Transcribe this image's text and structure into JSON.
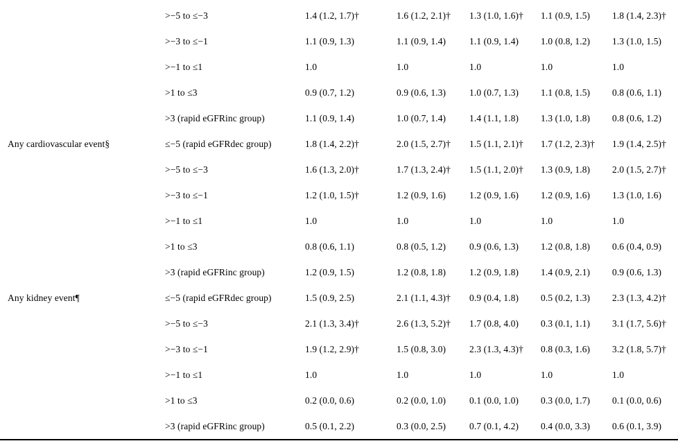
{
  "table": {
    "description": "Hazard ratio (95% CI) table by annual eGFR change category",
    "rows": [
      {
        "event": "",
        "category": ">−5 to ≤−3",
        "values": [
          "1.4 (1.2, 1.7)†",
          "1.6 (1.2, 2.1)†",
          "1.3 (1.0, 1.6)†",
          "1.1 (0.9, 1.5)",
          "1.8 (1.4, 2.3)†"
        ]
      },
      {
        "event": "",
        "category": ">−3 to ≤−1",
        "values": [
          "1.1 (0.9, 1.3)",
          "1.1 (0.9, 1.4)",
          "1.1 (0.9, 1.4)",
          "1.0 (0.8, 1.2)",
          "1.3 (1.0, 1.5)"
        ]
      },
      {
        "event": "",
        "category": ">−1 to ≤1",
        "values": [
          "1.0",
          "1.0",
          "1.0",
          "1.0",
          "1.0"
        ]
      },
      {
        "event": "",
        "category": ">1 to ≤3",
        "values": [
          "0.9 (0.7, 1.2)",
          "0.9 (0.6, 1.3)",
          "1.0 (0.7, 1.3)",
          "1.1 (0.8, 1.5)",
          "0.8 (0.6, 1.1)"
        ]
      },
      {
        "event": "",
        "category": ">3 (rapid eGFRinc group)",
        "values": [
          "1.1 (0.9, 1.4)",
          "1.0 (0.7, 1.4)",
          "1.4 (1.1, 1.8)",
          "1.3 (1.0, 1.8)",
          "0.8 (0.6, 1.2)"
        ]
      },
      {
        "event": "Any cardiovascular event§",
        "category": "≤−5 (rapid eGFRdec group)",
        "values": [
          "1.8 (1.4, 2.2)†",
          "2.0 (1.5, 2.7)†",
          "1.5 (1.1, 2.1)†",
          "1.7 (1.2, 2.3)†",
          "1.9 (1.4, 2.5)†"
        ]
      },
      {
        "event": "",
        "category": ">−5 to ≤−3",
        "values": [
          "1.6 (1.3, 2.0)†",
          "1.7 (1.3, 2.4)†",
          "1.5 (1.1, 2.0)†",
          "1.3 (0.9, 1.8)",
          "2.0 (1.5, 2.7)†"
        ]
      },
      {
        "event": "",
        "category": ">−3 to ≤−1",
        "values": [
          "1.2 (1.0, 1.5)†",
          "1.2 (0.9, 1.6)",
          "1.2 (0.9, 1.6)",
          "1.2 (0.9, 1.6)",
          "1.3 (1.0, 1.6)"
        ]
      },
      {
        "event": "",
        "category": ">−1 to ≤1",
        "values": [
          "1.0",
          "1.0",
          "1.0",
          "1.0",
          "1.0"
        ]
      },
      {
        "event": "",
        "category": ">1 to ≤3",
        "values": [
          "0.8 (0.6, 1.1)",
          "0.8 (0.5, 1.2)",
          "0.9 (0.6, 1.3)",
          "1.2 (0.8, 1.8)",
          "0.6 (0.4, 0.9)"
        ]
      },
      {
        "event": "",
        "category": ">3 (rapid eGFRinc group)",
        "values": [
          "1.2 (0.9, 1.5)",
          "1.2 (0.8, 1.8)",
          "1.2 (0.9, 1.8)",
          "1.4 (0.9, 2.1)",
          "0.9 (0.6, 1.3)"
        ]
      },
      {
        "event": "Any kidney event¶",
        "category": "≤−5 (rapid eGFRdec group)",
        "values": [
          "1.5 (0.9, 2.5)",
          "2.1 (1.1, 4.3)†",
          "0.9 (0.4, 1.8)",
          "0.5 (0.2, 1.3)",
          "2.3 (1.3, 4.2)†"
        ]
      },
      {
        "event": "",
        "category": ">−5 to ≤−3",
        "values": [
          "2.1 (1.3, 3.4)†",
          "2.6 (1.3, 5.2)†",
          "1.7 (0.8, 4.0)",
          "0.3 (0.1, 1.1)",
          "3.1 (1.7, 5.6)†"
        ]
      },
      {
        "event": "",
        "category": ">−3 to ≤−1",
        "values": [
          "1.9 (1.2, 2.9)†",
          "1.5 (0.8, 3.0)",
          "2.3 (1.3, 4.3)†",
          "0.8 (0.3, 1.6)",
          "3.2 (1.8, 5.7)†"
        ]
      },
      {
        "event": "",
        "category": ">−1 to ≤1",
        "values": [
          "1.0",
          "1.0",
          "1.0",
          "1.0",
          "1.0"
        ]
      },
      {
        "event": "",
        "category": ">1 to ≤3",
        "values": [
          "0.2 (0.0, 0.6)",
          "0.2 (0.0, 1.0)",
          "0.1 (0.0, 1.0)",
          "0.3 (0.0, 1.7)",
          "0.1 (0.0, 0.6)"
        ]
      },
      {
        "event": "",
        "category": ">3 (rapid eGFRinc group)",
        "values": [
          "0.5 (0.1, 2.2)",
          "0.3 (0.0, 2.5)",
          "0.7 (0.1, 4.2)",
          "0.4 (0.0, 3.3)",
          "0.6 (0.1, 3.9)"
        ]
      }
    ]
  }
}
